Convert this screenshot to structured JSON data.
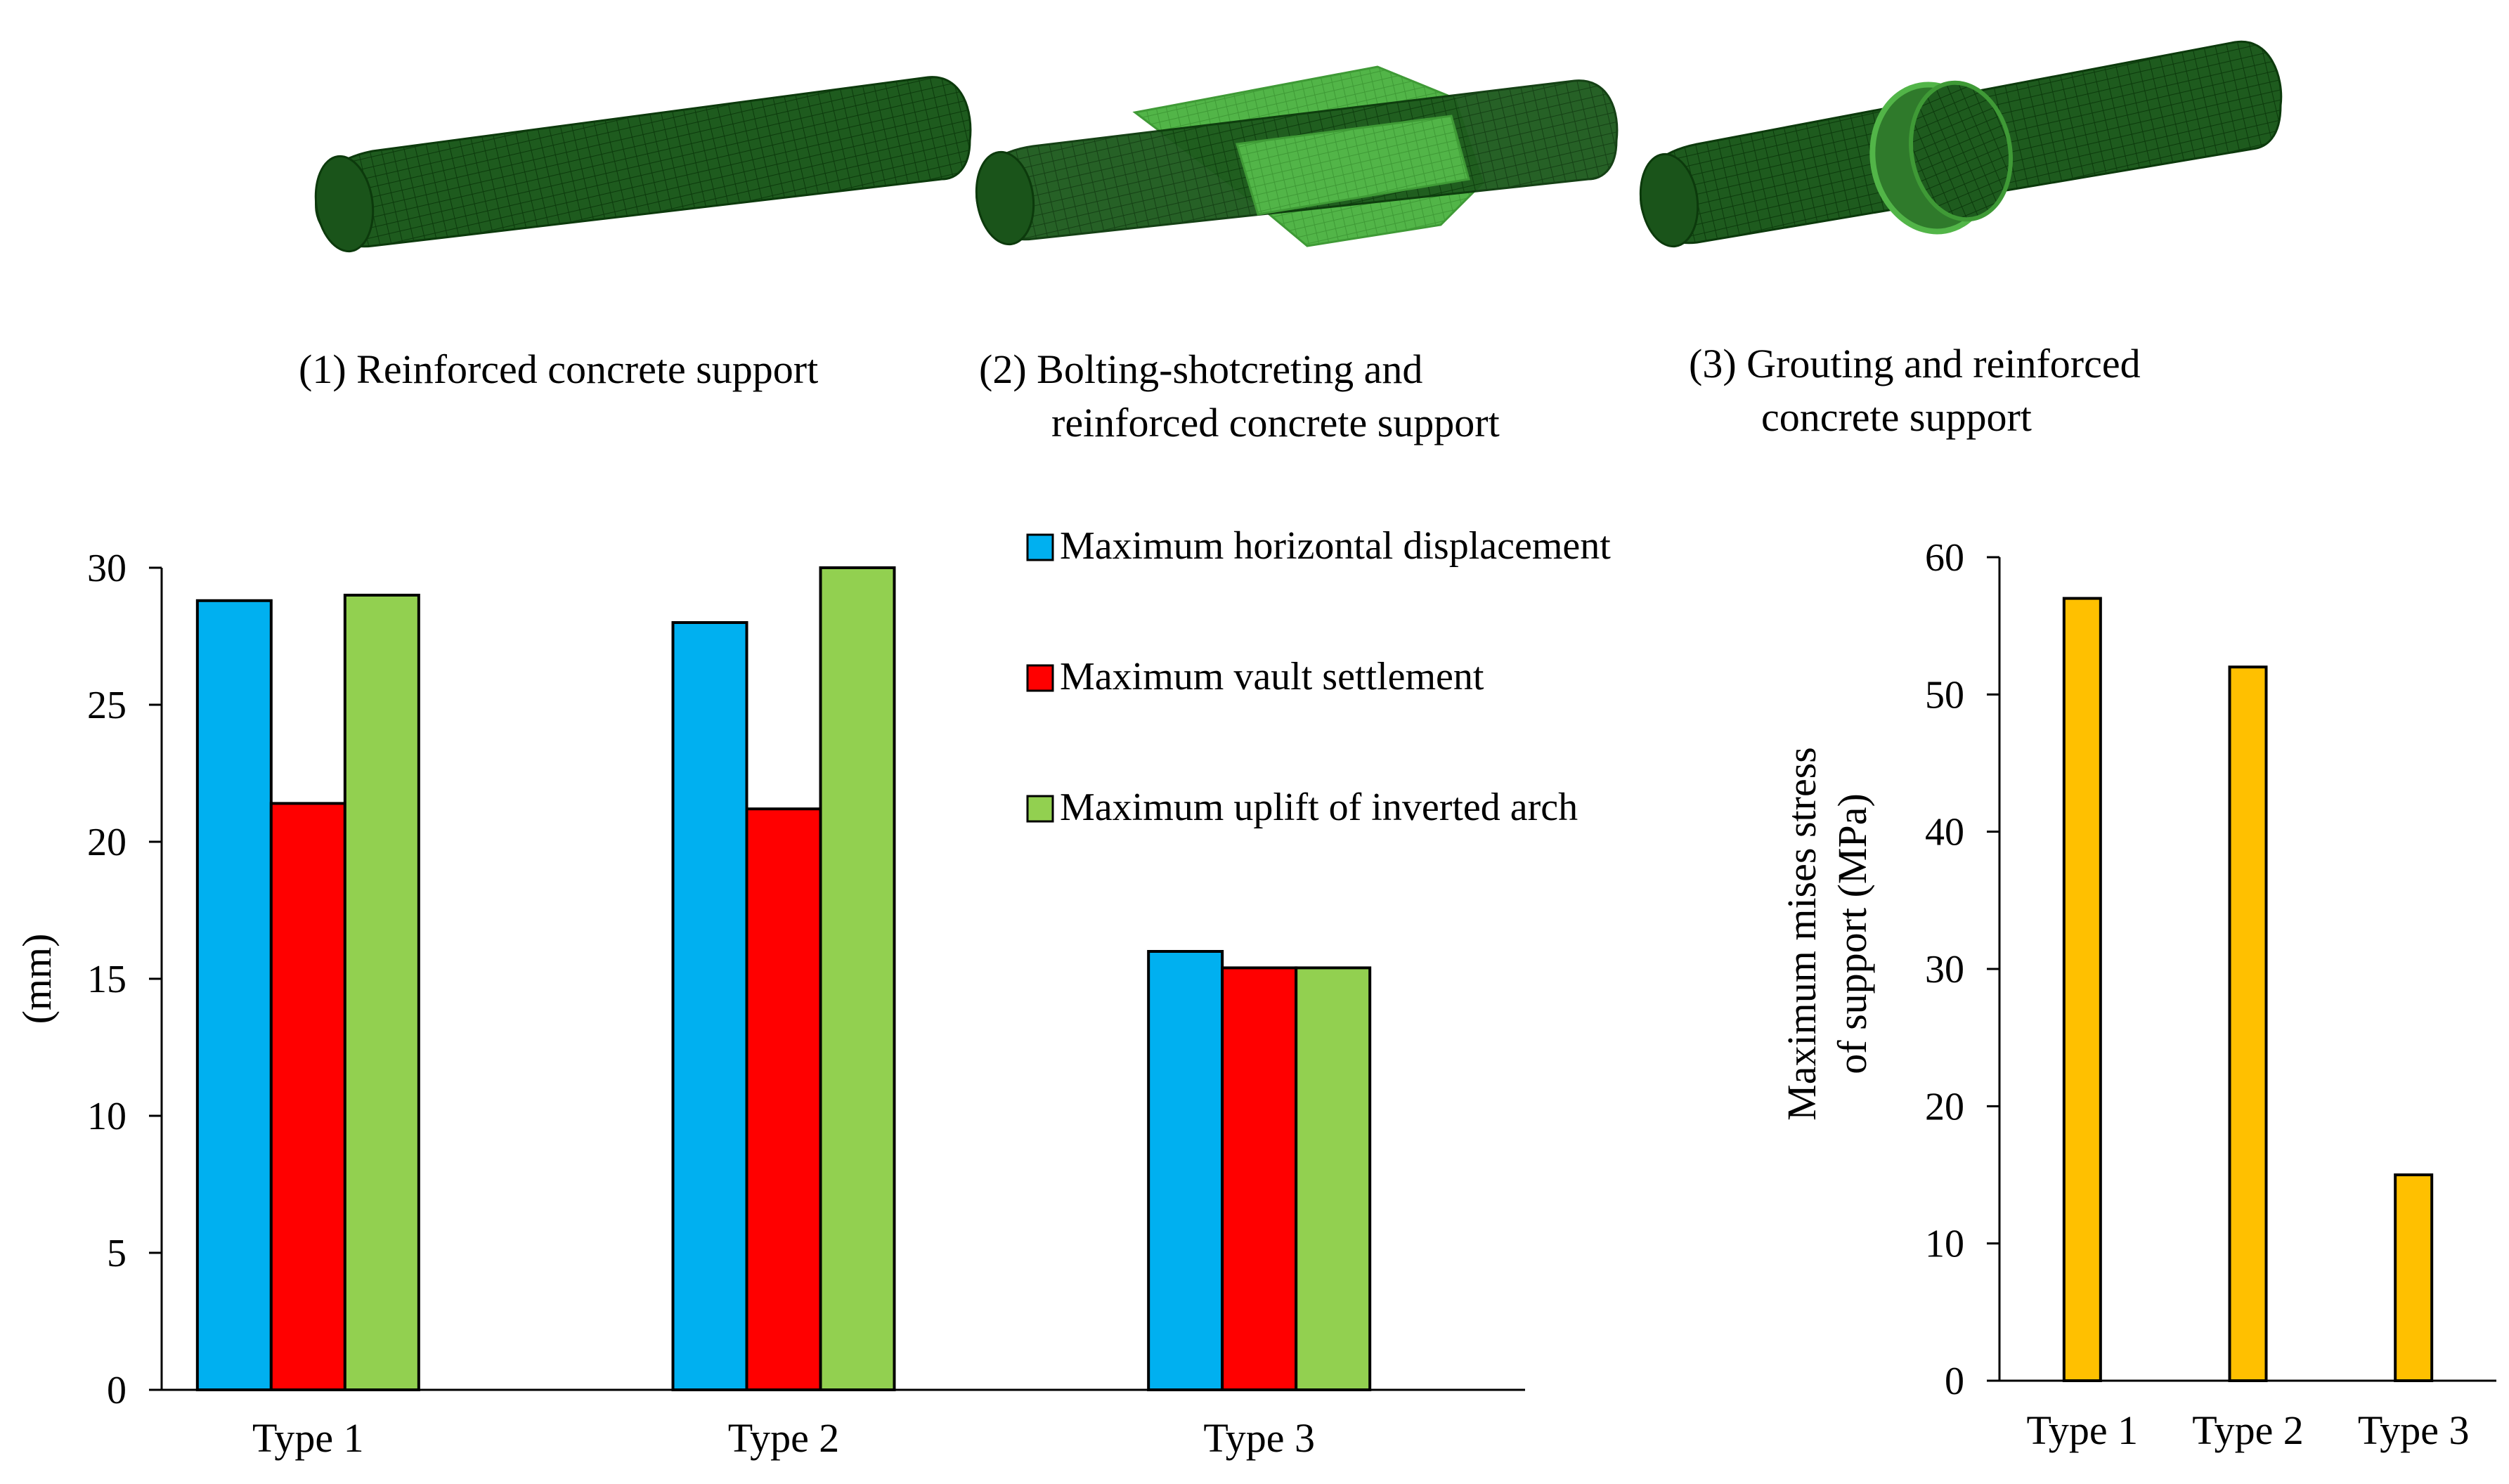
{
  "models": [
    {
      "label_lines": [
        "(1) Reinforced concrete support"
      ]
    },
    {
      "label_lines": [
        "(2) Bolting-shotcreting and",
        "reinforced concrete support"
      ]
    },
    {
      "label_lines": [
        "(3) Grouting and reinforced",
        "concrete support"
      ]
    }
  ],
  "colors": {
    "tunnel_dark": "#1e5b1e",
    "tunnel_light": "#52b548",
    "series_blue": "#00b0f0",
    "series_red": "#ff0000",
    "series_green": "#92d050",
    "series_orange": "#ffc000"
  },
  "chart_data": [
    {
      "type": "bar",
      "categories": [
        "Type 1",
        "Type 2",
        "Type 3"
      ],
      "series": [
        {
          "name": "Maximum horizontal displacement",
          "color": "#00b0f0",
          "values": [
            28.8,
            28.0,
            16.0
          ]
        },
        {
          "name": "Maximum vault settlement",
          "color": "#ff0000",
          "values": [
            21.4,
            21.2,
            15.4
          ]
        },
        {
          "name": "Maximum uplift of inverted arch",
          "color": "#92d050",
          "values": [
            29.0,
            30.0,
            15.4
          ]
        }
      ],
      "ylabel": "(mm)",
      "ylim": [
        0,
        30
      ],
      "yticks": [
        "0",
        "5",
        "10",
        "15",
        "20",
        "25",
        "30"
      ],
      "legend": "top-right",
      "grid": false
    },
    {
      "type": "bar",
      "categories": [
        "Type 1",
        "Type 2",
        "Type 3"
      ],
      "series": [
        {
          "color": "#ffc000",
          "values": [
            57,
            52,
            15
          ]
        }
      ],
      "ylabel_lines": [
        "Maximum mises stress",
        "of support (MPa)"
      ],
      "ylim": [
        0,
        60
      ],
      "yticks": [
        "0",
        "10",
        "20",
        "30",
        "40",
        "50",
        "60"
      ],
      "grid": false
    }
  ]
}
